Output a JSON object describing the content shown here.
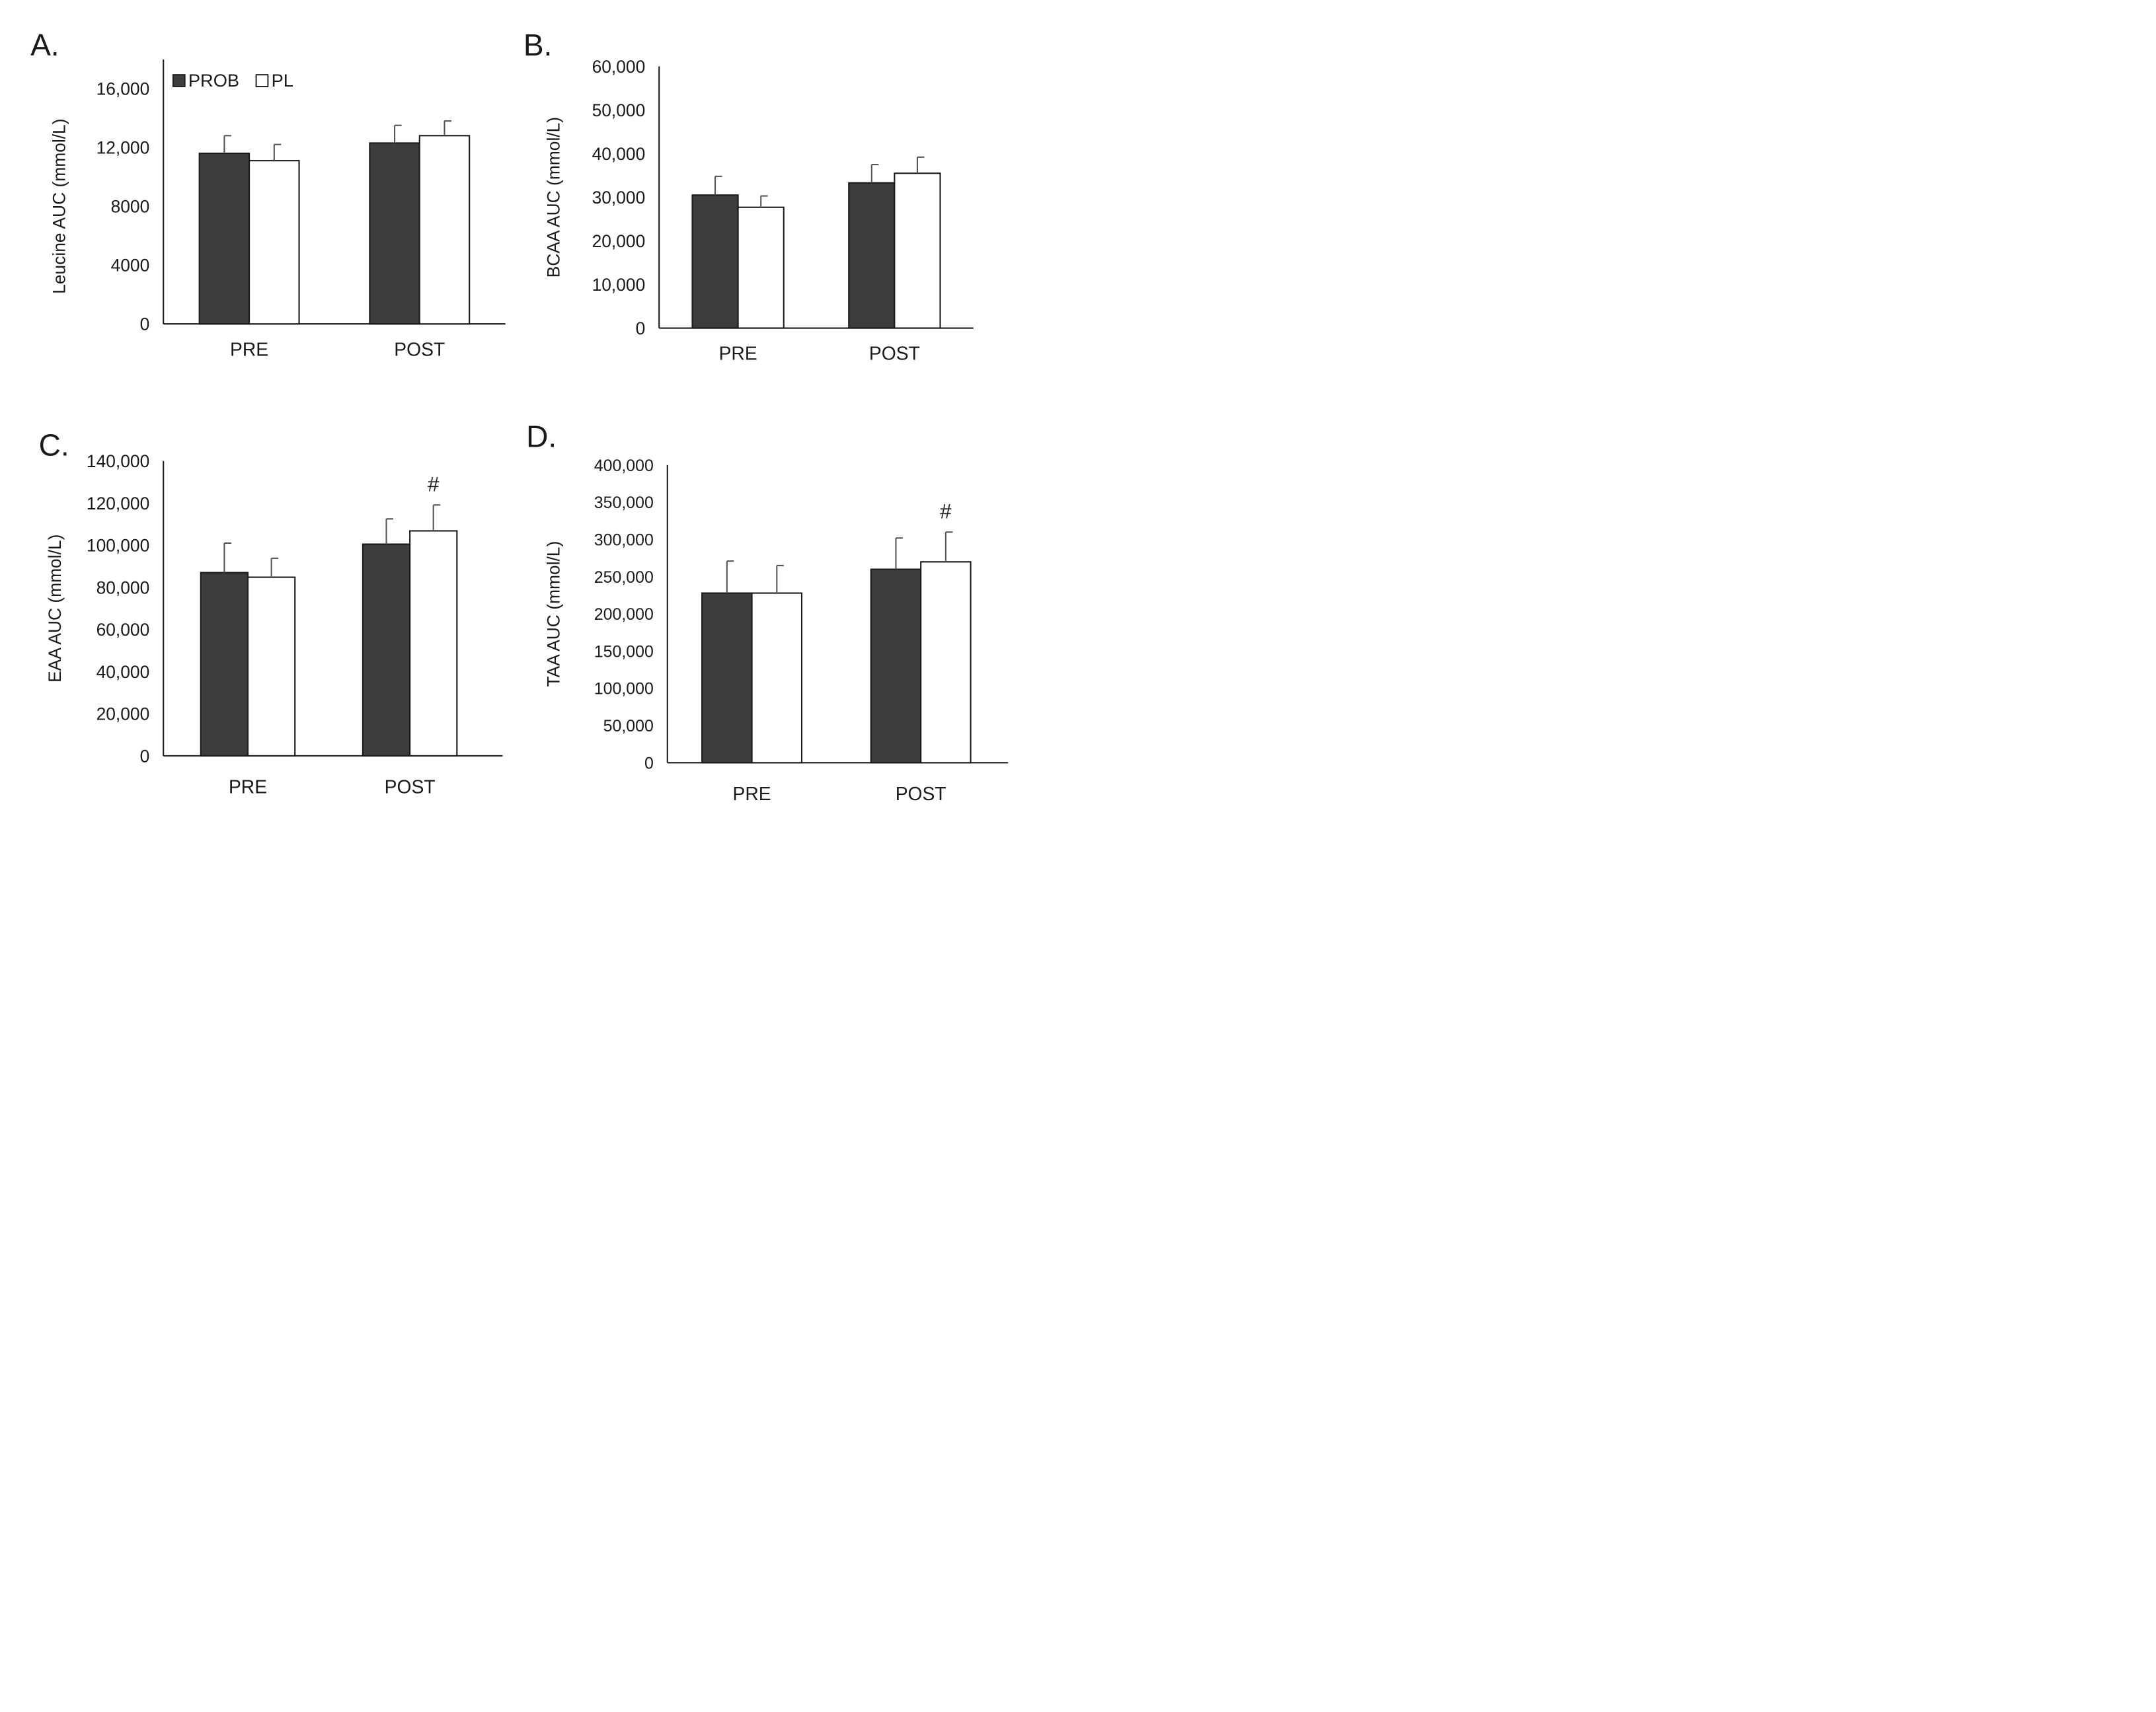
{
  "legend": {
    "items": [
      {
        "label": "PROB",
        "color": "#3d3d3d"
      },
      {
        "label": "PL",
        "color": "#ffffff"
      }
    ]
  },
  "colors": {
    "prob": "#3d3d3d",
    "pl": "#ffffff",
    "axis": "#1a1a1a",
    "error": "#555555"
  },
  "chart_data": [
    {
      "panel": "A.",
      "type": "bar",
      "ylabel": "Leucine AUC (mmol/L)",
      "categories": [
        "PRE",
        "POST"
      ],
      "ylim": [
        0,
        16000
      ],
      "yticks": [
        0,
        4000,
        8000,
        12000,
        16000
      ],
      "ytick_labels": [
        "0",
        "4000",
        "8000",
        "12,000",
        "16,000"
      ],
      "series": [
        {
          "name": "PROB",
          "values": [
            11600,
            12300
          ],
          "errors": [
            1200,
            1200
          ]
        },
        {
          "name": "PL",
          "values": [
            11100,
            12800
          ],
          "errors": [
            1100,
            1000
          ]
        }
      ],
      "annotations": []
    },
    {
      "panel": "B.",
      "type": "bar",
      "ylabel": "BCAA  AUC (mmol/L)",
      "categories": [
        "PRE",
        "POST"
      ],
      "ylim": [
        0,
        60000
      ],
      "yticks": [
        0,
        10000,
        20000,
        30000,
        40000,
        50000,
        60000
      ],
      "ytick_labels": [
        "0",
        "10,000",
        "20,000",
        "30,000",
        "40,000",
        "50,000",
        "60,000"
      ],
      "series": [
        {
          "name": "PROB",
          "values": [
            30500,
            33300
          ],
          "errors": [
            4300,
            4200
          ]
        },
        {
          "name": "PL",
          "values": [
            27700,
            35500
          ],
          "errors": [
            2600,
            3700
          ]
        }
      ],
      "annotations": []
    },
    {
      "panel": "C.",
      "type": "bar",
      "ylabel": "EAA  AUC (mmol/L)",
      "categories": [
        "PRE",
        "POST"
      ],
      "ylim": [
        0,
        140000
      ],
      "yticks": [
        0,
        20000,
        40000,
        60000,
        80000,
        100000,
        120000,
        140000
      ],
      "ytick_labels": [
        "0",
        "20,000",
        "40,000",
        "60,000",
        "80,000",
        "100,000",
        "120,000",
        "140,000"
      ],
      "series": [
        {
          "name": "PROB",
          "values": [
            87000,
            100500
          ],
          "errors": [
            14000,
            12000
          ]
        },
        {
          "name": "PL",
          "values": [
            84800,
            106800
          ],
          "errors": [
            9000,
            12300
          ]
        }
      ],
      "annotations": [
        {
          "text": "#",
          "category": "POST",
          "series": "PL"
        }
      ]
    },
    {
      "panel": "D.",
      "type": "bar",
      "ylabel": "TAA  AUC (mmol/L)",
      "categories": [
        "PRE",
        "POST"
      ],
      "ylim": [
        0,
        400000
      ],
      "yticks": [
        0,
        50000,
        100000,
        150000,
        200000,
        250000,
        300000,
        350000,
        400000
      ],
      "ytick_labels": [
        "0",
        "50,000",
        "100,000",
        "150,000",
        "200,000",
        "250,000",
        "300,000",
        "350,000",
        "400,000"
      ],
      "series": [
        {
          "name": "PROB",
          "values": [
            228000,
            260000
          ],
          "errors": [
            43000,
            42000
          ]
        },
        {
          "name": "PL",
          "values": [
            228000,
            270000
          ],
          "errors": [
            37000,
            40000
          ]
        }
      ],
      "annotations": [
        {
          "text": "#",
          "category": "POST",
          "series": "PL"
        }
      ]
    }
  ]
}
